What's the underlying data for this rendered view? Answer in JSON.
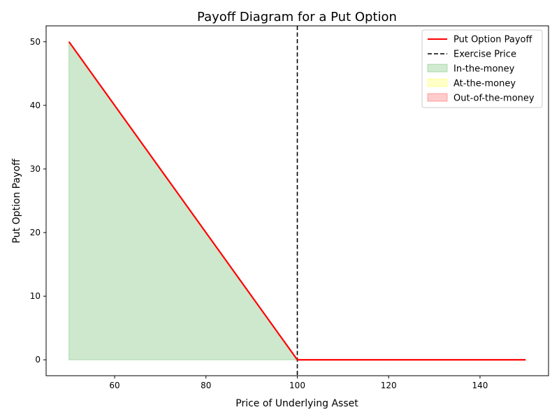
{
  "chart_data": {
    "type": "line",
    "title": "Payoff Diagram for a Put Option",
    "xlabel": "Price of Underlying Asset",
    "ylabel": "Put Option Payoff",
    "xlim": [
      45,
      155
    ],
    "ylim": [
      -2.5,
      52.5
    ],
    "xticks": [
      60,
      80,
      100,
      120,
      140
    ],
    "yticks": [
      0,
      10,
      20,
      30,
      40,
      50
    ],
    "grid": false,
    "legend_position": "top-right",
    "series": [
      {
        "name": "Put Option Payoff",
        "style": "solid",
        "color": "#ff0000",
        "x": [
          50,
          100,
          150
        ],
        "y": [
          50,
          0,
          0
        ]
      }
    ],
    "vertical_lines": [
      {
        "name": "Exercise Price",
        "x": 100,
        "style": "dashed",
        "color": "#000000"
      }
    ],
    "shaded_regions": [
      {
        "name": "In-the-money",
        "color": "#2ca02c",
        "x": [
          50,
          100
        ],
        "y_top": [
          50,
          0
        ],
        "y_bottom": 0
      },
      {
        "name": "At-the-money",
        "color": "#ffff00"
      },
      {
        "name": "Out-of-the-money",
        "color": "#ff0000"
      }
    ]
  }
}
